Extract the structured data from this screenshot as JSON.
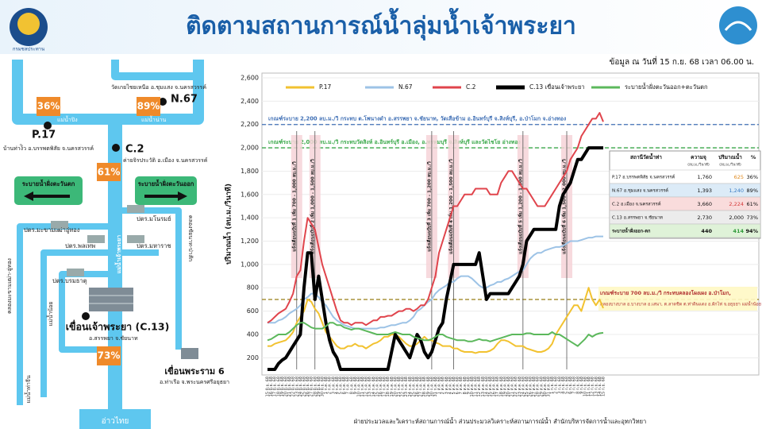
{
  "header": {
    "title": "ติดตามสถานการณ์น้ำลุ่มน้ำเจ้าพระยา",
    "logo": "กรมชลประทาน",
    "date": "ข้อมูล ณ วันที่ 15 ก.ย. 68 เวลา 06.00 น."
  },
  "map": {
    "n67_place": "วัดเกยไชยเหนือ อ.ชุมแสง จ.นครสวรรค์",
    "n67": "N.67",
    "n67_pct": "89%",
    "p17": "P.17",
    "p17_pct": "36%",
    "p17_place": "บ้านท่าง้ิว อ.บรรพตพิสัย จ.นครสวรรค์",
    "ping": "แม่น้ำปิง",
    "nan": "แม่น้ำน่าน",
    "c2": "C.2",
    "c2_place": "ค่ายจิรประวัติ อ.เมือง จ.นครสวรรค์",
    "c2_pct": "61%",
    "west": "ระบายน้ำฝั่งตะวันตก",
    "east": "ระบายน้ำฝั่งตะวันออก",
    "manorom": "ปตร.มโนรมย์",
    "maharaj": "ปตร.มหาราช",
    "phonthep": "ปตร.พลเทพ",
    "boromathat": "ปตร.บรมธาตุ",
    "makham": "ปตร.มะขามเฒ่าอู่ทอง",
    "chaophraya": "แม่น้ำเจ้าพระยา",
    "pasak_canal": "คลองชัยนาท-ป่าสัก",
    "makham_canal": "คลองมะขามเฒ่า-อู่ทอง",
    "noi": "แม่น้ำน้อย",
    "thachin": "แม่น้ำท่าจีน",
    "dam": "เขื่อนเจ้าพระยา (C.13)",
    "dam_place": "อ.สรรพยา จ.ชัยนาท",
    "dam_pct": "73%",
    "rama6": "เขื่อนพระราม 6",
    "rama6_place": "อ.ท่าเรือ จ.พระนครศรีอยุธยา",
    "gulf": "อ่าวไทย"
  },
  "chart_data": {
    "type": "line",
    "y_label": "ปริมาณน้ำ (ลบ.ม./วินาที)",
    "ylim": [
      100,
      2600
    ],
    "yticks": [
      200,
      400,
      600,
      800,
      {
        "value": 1000,
        "label": "1,000"
      },
      {
        "value": 1200,
        "label": "1,200"
      },
      {
        "value": 1400,
        "label": "1,400"
      },
      {
        "value": 1600,
        "label": "1,600"
      },
      {
        "value": 1800,
        "label": "1,800"
      },
      {
        "value": 2000,
        "label": "2,000"
      },
      {
        "value": 2200,
        "label": "2,200"
      },
      {
        "value": 2400,
        "label": "2,400"
      },
      {
        "value": 2600,
        "label": "2,600"
      }
    ],
    "categories": [
      "15 มิ.ย. 68",
      "16 มิ.ย. 68",
      "17 มิ.ย. 68",
      "18 มิ.ย. 68",
      "19 มิ.ย. 68",
      "20 มิ.ย. 68",
      "21 มิ.ย. 68",
      "22 มิ.ย. 68",
      "23 มิ.ย. 68",
      "24 มิ.ย. 68",
      "25 มิ.ย. 68",
      "26 มิ.ย. 68",
      "27 มิ.ย. 68",
      "28 มิ.ย. 68",
      "29 มิ.ย. 68",
      "30 มิ.ย. 68",
      "1 ก.ค. 68",
      "2 ก.ค. 68",
      "3 ก.ค. 68",
      "4 ก.ค. 68",
      "5 ก.ค. 68",
      "6 ก.ค. 68",
      "7 ก.ค. 68",
      "8 ก.ค. 68",
      "9 ก.ค. 68",
      "10 ก.ค. 68",
      "11 ก.ค. 68",
      "12 ก.ค. 68",
      "13 ก.ค. 68",
      "14 ก.ค. 68",
      "15 ก.ค. 68",
      "16 ก.ค. 68",
      "17 ก.ค. 68",
      "18 ก.ค. 68",
      "19 ก.ค. 68",
      "20 ก.ค. 68",
      "21 ก.ค. 68",
      "22 ก.ค. 68",
      "23 ก.ค. 68",
      "24 ก.ค. 68",
      "25 ก.ค. 68",
      "26 ก.ค. 68",
      "27 ก.ค. 68",
      "28 ก.ค. 68",
      "29 ก.ค. 68",
      "30 ก.ค. 68",
      "31 ก.ค. 68",
      "1 ส.ค. 68",
      "2 ส.ค. 68",
      "3 ส.ค. 68",
      "4 ส.ค. 68",
      "5 ส.ค. 68",
      "6 ส.ค. 68",
      "7 ส.ค. 68",
      "8 ส.ค. 68",
      "9 ส.ค. 68",
      "10 ส.ค. 68",
      "11 ส.ค. 68",
      "12 ส.ค. 68",
      "13 ส.ค. 68",
      "14 ส.ค. 68",
      "15 ส.ค. 68",
      "16 ส.ค. 68",
      "17 ส.ค. 68",
      "18 ส.ค. 68",
      "19 ส.ค. 68",
      "20 ส.ค. 68",
      "21 ส.ค. 68",
      "22 ส.ค. 68",
      "23 ส.ค. 68",
      "24 ส.ค. 68",
      "25 ส.ค. 68",
      "26 ส.ค. 68",
      "27 ส.ค. 68",
      "28 ส.ค. 68",
      "29 ส.ค. 68",
      "30 ส.ค. 68",
      "31 ส.ค. 68",
      "1 ก.ย. 68",
      "2 ก.ย. 68",
      "3 ก.ย. 68",
      "4 ก.ย. 68",
      "5 ก.ย. 68",
      "6 ก.ย. 68",
      "7 ก.ย. 68",
      "8 ก.ย. 68",
      "9 ก.ย. 68",
      "10 ก.ย. 68",
      "11 ก.ย. 68",
      "12 ก.ย. 68",
      "13 ก.ย. 68",
      "14 ก.ย. 68",
      "15 ก.ย. 68"
    ],
    "series": [
      {
        "name": "P.17",
        "color": "#f2c230",
        "width": 2,
        "values": [
          300,
          300,
          320,
          330,
          340,
          350,
          380,
          420,
          500,
          550,
          600,
          700,
          680,
          620,
          580,
          500,
          420,
          380,
          340,
          300,
          280,
          280,
          300,
          300,
          320,
          300,
          300,
          280,
          300,
          320,
          330,
          350,
          380,
          380,
          400,
          400,
          380,
          350,
          320,
          300,
          300,
          320,
          350,
          380,
          350,
          350,
          330,
          320,
          300,
          300,
          300,
          280,
          280,
          260,
          250,
          250,
          250,
          240,
          250,
          250,
          250,
          260,
          280,
          320,
          350,
          350,
          340,
          320,
          300,
          300,
          300,
          280,
          270,
          260,
          250,
          250,
          260,
          280,
          320,
          400,
          450,
          500,
          550,
          600,
          650,
          650,
          600,
          700,
          800,
          700,
          650,
          700,
          625
        ]
      },
      {
        "name": "N.67",
        "color": "#9dc3e6",
        "width": 2,
        "values": [
          500,
          500,
          500,
          520,
          530,
          550,
          580,
          600,
          620,
          650,
          700,
          720,
          750,
          750,
          720,
          680,
          650,
          600,
          550,
          520,
          500,
          480,
          470,
          460,
          450,
          450,
          450,
          450,
          450,
          450,
          450,
          460,
          460,
          470,
          480,
          480,
          490,
          500,
          500,
          520,
          550,
          600,
          620,
          650,
          680,
          700,
          750,
          780,
          800,
          820,
          850,
          850,
          880,
          900,
          900,
          900,
          880,
          850,
          820,
          800,
          800,
          820,
          830,
          850,
          850,
          870,
          880,
          900,
          920,
          940,
          950,
          1000,
          1050,
          1080,
          1100,
          1100,
          1120,
          1130,
          1140,
          1150,
          1150,
          1160,
          1180,
          1200,
          1200,
          1200,
          1210,
          1220,
          1230,
          1230,
          1240,
          1240,
          1240
        ]
      },
      {
        "name": "C.2",
        "color": "#e0444c",
        "width": 2,
        "values": [
          500,
          520,
          550,
          580,
          600,
          620,
          680,
          750,
          900,
          950,
          1200,
          1400,
          1350,
          1300,
          1150,
          1000,
          900,
          800,
          700,
          600,
          520,
          500,
          500,
          480,
          500,
          500,
          500,
          480,
          500,
          520,
          520,
          550,
          550,
          560,
          560,
          580,
          600,
          600,
          620,
          620,
          600,
          620,
          650,
          650,
          700,
          800,
          900,
          1100,
          1200,
          1300,
          1400,
          1500,
          1500,
          1550,
          1600,
          1600,
          1600,
          1650,
          1650,
          1650,
          1650,
          1600,
          1600,
          1600,
          1700,
          1750,
          1800,
          1800,
          1750,
          1700,
          1650,
          1650,
          1600,
          1550,
          1500,
          1500,
          1500,
          1550,
          1600,
          1650,
          1700,
          1750,
          1800,
          1900,
          1950,
          2000,
          2100,
          2150,
          2200,
          2250,
          2250,
          2300,
          2224
        ]
      },
      {
        "name": "C.13 เขื่อนเจ้าพระยา",
        "color": "#000000",
        "width": 4,
        "values": [
          100,
          100,
          100,
          150,
          180,
          200,
          250,
          300,
          350,
          400,
          800,
          1100,
          1100,
          700,
          900,
          700,
          500,
          350,
          250,
          200,
          100,
          100,
          100,
          100,
          100,
          100,
          100,
          100,
          100,
          100,
          100,
          100,
          100,
          100,
          250,
          400,
          350,
          300,
          250,
          200,
          300,
          400,
          350,
          250,
          200,
          250,
          350,
          450,
          500,
          700,
          850,
          1000,
          1000,
          1000,
          1000,
          1000,
          1000,
          1000,
          1100,
          900,
          700,
          750,
          750,
          750,
          750,
          750,
          750,
          800,
          850,
          900,
          1000,
          1200,
          1250,
          1300,
          1300,
          1300,
          1300,
          1300,
          1300,
          1300,
          1500,
          1600,
          1650,
          1700,
          1800,
          1900,
          1900,
          1950,
          2000,
          2000,
          2000,
          2000,
          2000
        ]
      },
      {
        "name": "ระบายน้ำฝั่งตะวันออก+ตะวันตก",
        "color": "#5cb85c",
        "width": 2,
        "values": [
          350,
          360,
          380,
          400,
          400,
          400,
          420,
          450,
          480,
          500,
          500,
          480,
          460,
          450,
          450,
          450,
          470,
          500,
          500,
          480,
          480,
          460,
          450,
          440,
          450,
          450,
          440,
          430,
          420,
          410,
          400,
          400,
          400,
          400,
          410,
          420,
          410,
          400,
          400,
          400,
          380,
          370,
          360,
          350,
          350,
          360,
          380,
          400,
          400,
          380,
          370,
          360,
          350,
          350,
          350,
          340,
          340,
          350,
          360,
          350,
          350,
          340,
          350,
          360,
          370,
          380,
          390,
          400,
          400,
          400,
          400,
          410,
          410,
          400,
          400,
          400,
          400,
          400,
          420,
          400,
          400,
          380,
          360,
          340,
          320,
          300,
          330,
          360,
          400,
          380,
          400,
          410,
          414
        ]
      }
    ],
    "reference_lines": [
      {
        "value": 2200,
        "color": "#3f6fb5",
        "label": "เกณฑ์ระบาย 2,200 ลบ.ม./วิ กระทบ ต.โพนางดำ อ.สรรพยา จ.ชัยนาท, วัดเสือข้าม อ.อินทร์บุรี จ.สิงห์บุรี, อ.ป่าโมก จ.อ่างทอง"
      },
      {
        "value": 2000,
        "color": "#3aa84a",
        "label": "เกณฑ์ระบาย 2,000 ลบ.ม./วิ กระทบวัดสิงห์ อ.อินทร์บุรี อ.เมือง, อ.พรหมบุรี จ.สิงห์บุรี และวัดไชโย อ่างทอง"
      },
      {
        "value": 700,
        "color": "#a08a2a",
        "label": "เกณฑ์ระบาย 700 ลบ.ม./วิ กระทบคลองโผงเผง อ.ป่าโมก,",
        "label2": "คลองบางบาล อ.บางบาล อ.เสนา, ต.ลาดชิด ต.ท่าดินแดง อ.ผักไห่ จ.อยุธยา แม่น้ำน้อย"
      }
    ],
    "annotations": [
      {
        "x": 8,
        "text": "แจ้งเตือนฉบับที่ 1 เพิ่ม 700 - 1,000 ลบ.ม./วิ"
      },
      {
        "x": 13,
        "text": "แจ้งเตือนฉบับที่ 2 เพิ่ม 1,000 - 1,500 ลบ.ม./วิ"
      },
      {
        "x": 45,
        "text": "แจ้งเตือนฉบับที่ 3 เพิ่ม 700 - 1,200 ลบ.ม./วิ"
      },
      {
        "x": 51,
        "text": "แจ้งเตือนฉบับที่ 4 เพิ่ม 1,200 - 1,500 ลบ.ม./วิ"
      },
      {
        "x": 70,
        "text": "แจ้งเตือนฉบับที่ 5 เพิ่ม 1,200 - 1,500 ลบ.ม./วิ"
      },
      {
        "x": 82,
        "text": "แจ้งเตือนฉบับที่ 6 เพิ่ม 1,500 - 2,000 ลบ.ม./วิ"
      }
    ],
    "grid": true,
    "legend": "top"
  },
  "table": {
    "header": [
      "สถานีวัดน้ำท่า",
      "ความจุ",
      "ปริมาณน้ำ",
      "%"
    ],
    "units": [
      "(ลบ.ม./วินาที)",
      "(ลบ.ม./วินาที)"
    ],
    "rows": [
      [
        "P.17 อ.บรรพตพิสัย จ.นครสวรรค์",
        "1,760",
        "625",
        "36%"
      ],
      [
        "N.67 อ.ชุมแสง จ.นครสวรรค์",
        "1,393",
        "1,240",
        "89%"
      ],
      [
        "C.2 อ.เมือง จ.นครสวรรค์",
        "3,660",
        "2,224",
        "61%"
      ],
      [
        "C.13 อ.สรรพยา จ.ชัยนาท",
        "2,730",
        "2,000",
        "73%"
      ],
      [
        "ระบายน้ำฝั่งออก-ตก",
        "440",
        "414",
        "94%"
      ]
    ]
  },
  "footer": "ฝ่ายประมวลและวิเคราะห์สถานการณ์น้ำ ส่วนประมวลวิเคราะห์สถานการณ์น้ำ สำนักบริหารจัดการน้ำและอุทกวิทยา"
}
